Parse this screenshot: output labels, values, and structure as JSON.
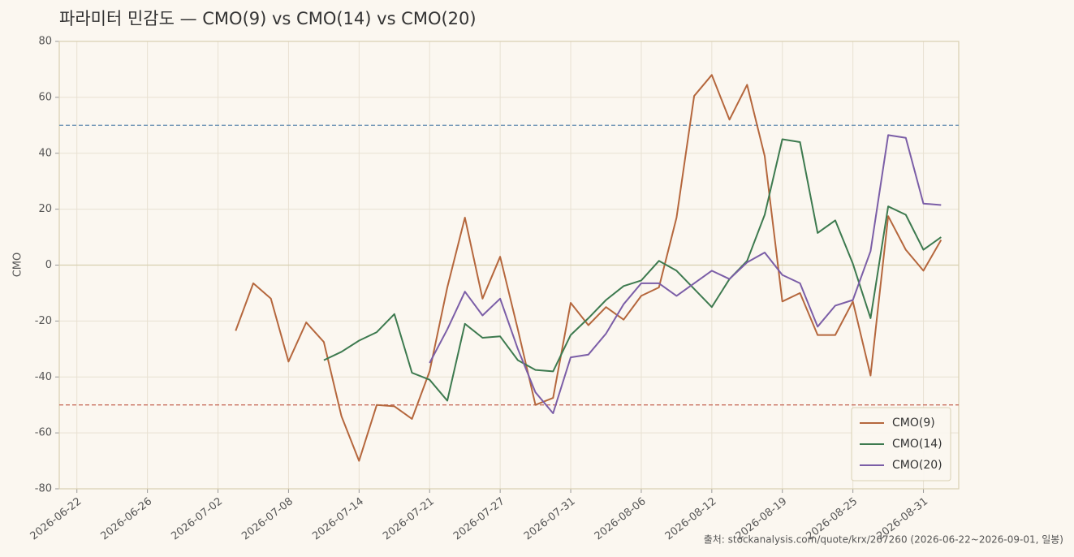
{
  "chart_data": {
    "type": "line",
    "title": "파라미터 민감도 — CMO(9) vs CMO(14) vs CMO(20)",
    "y_label": "CMO",
    "source": "출처: stockanalysis.com/quote/krx/267260 (2026-06-22~2026-09-01, 일봉)",
    "categories": [
      "2026-06-22",
      null,
      null,
      null,
      "2026-06-26",
      null,
      null,
      null,
      "2026-07-02",
      null,
      null,
      null,
      "2026-07-08",
      null,
      null,
      null,
      "2026-07-14",
      null,
      null,
      null,
      "2026-07-21",
      null,
      null,
      null,
      "2026-07-27",
      null,
      null,
      null,
      "2026-07-31",
      null,
      null,
      null,
      "2026-08-06",
      null,
      null,
      null,
      "2026-08-12",
      null,
      null,
      null,
      "2026-08-19",
      null,
      null,
      null,
      "2026-08-25",
      null,
      null,
      null,
      "2026-08-31",
      null
    ],
    "series": [
      {
        "name": "CMO(9)",
        "color": "#b5673d",
        "values": [
          null,
          null,
          null,
          null,
          null,
          null,
          null,
          null,
          null,
          -23.5,
          -6.5,
          -12,
          -34.5,
          -20.5,
          -27.5,
          -54,
          -70,
          -50,
          -50.5,
          -55,
          -38,
          -8,
          17,
          -12,
          3,
          -23,
          -50,
          -47.5,
          -13.5,
          -21.5,
          -15,
          -19.5,
          -11,
          -8,
          17,
          60.5,
          68,
          52,
          64.5,
          39,
          -13,
          -10,
          -25,
          -25,
          -13,
          -39.5,
          17.5,
          5.5,
          -2,
          9
        ]
      },
      {
        "name": "CMO(14)",
        "color": "#3d7a4f",
        "values": [
          null,
          null,
          null,
          null,
          null,
          null,
          null,
          null,
          null,
          null,
          null,
          null,
          null,
          null,
          -34,
          -31,
          -27,
          -24,
          -17.5,
          -38.5,
          -41,
          -48.5,
          -21,
          -26,
          -25.5,
          -34,
          -37.5,
          -38,
          -25,
          -19,
          -12.5,
          -7.5,
          -5.5,
          1.5,
          -2,
          -8.5,
          -15,
          -5,
          1.5,
          18,
          45,
          44,
          11.5,
          16,
          0.5,
          -19,
          21,
          18,
          5.5,
          10
        ]
      },
      {
        "name": "CMO(20)",
        "color": "#7b5ea7",
        "values": [
          null,
          null,
          null,
          null,
          null,
          null,
          null,
          null,
          null,
          null,
          null,
          null,
          null,
          null,
          null,
          null,
          null,
          null,
          null,
          null,
          -35,
          -23,
          -9.5,
          -18,
          -12,
          -30,
          -45.5,
          -53,
          -33,
          -32,
          -24.5,
          -14,
          -6.5,
          -6.5,
          -11,
          -6.5,
          -2,
          -5,
          1,
          4.5,
          -3.5,
          -6.5,
          -22,
          -14.5,
          -12.5,
          5,
          46.5,
          45.5,
          22,
          21.5
        ]
      }
    ],
    "hlines": [
      {
        "value": 50,
        "color": "#6f95b5",
        "style": "dashed"
      },
      {
        "value": -50,
        "color": "#c9705f",
        "style": "dashed"
      },
      {
        "value": 0,
        "color": "#d8d0b0",
        "style": "solid"
      }
    ],
    "ylim": [
      -80,
      80
    ],
    "yticks": [
      -80,
      -60,
      -40,
      -20,
      0,
      20,
      40,
      60,
      80
    ],
    "grid": true,
    "legend": "lower right"
  }
}
